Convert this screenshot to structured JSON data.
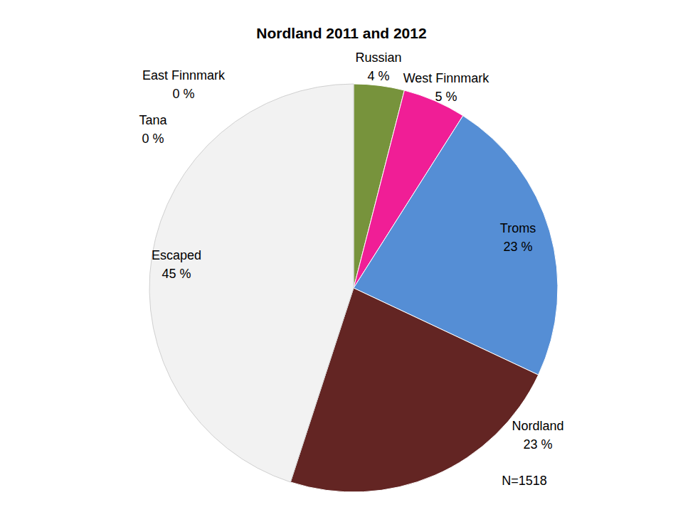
{
  "chart_data": {
    "type": "pie",
    "title": "Nordland 2011 and 2012",
    "categories": [
      "Russian",
      "West Finnmark",
      "Troms",
      "Nordland",
      "Escaped",
      "Tana",
      "East Finnmark"
    ],
    "values": [
      4,
      5,
      23,
      23,
      45,
      0,
      0
    ],
    "value_labels": [
      "4 %",
      "5 %",
      "23 %",
      "23 %",
      "45 %",
      "0 %",
      "0 %"
    ],
    "colors": [
      "#77933c",
      "#f01e96",
      "#558ed5",
      "#632523",
      "#f2f2f2",
      "#a6a6a6",
      "#4f6228"
    ],
    "data_labels": true,
    "annotations": [
      "N=1518"
    ]
  }
}
